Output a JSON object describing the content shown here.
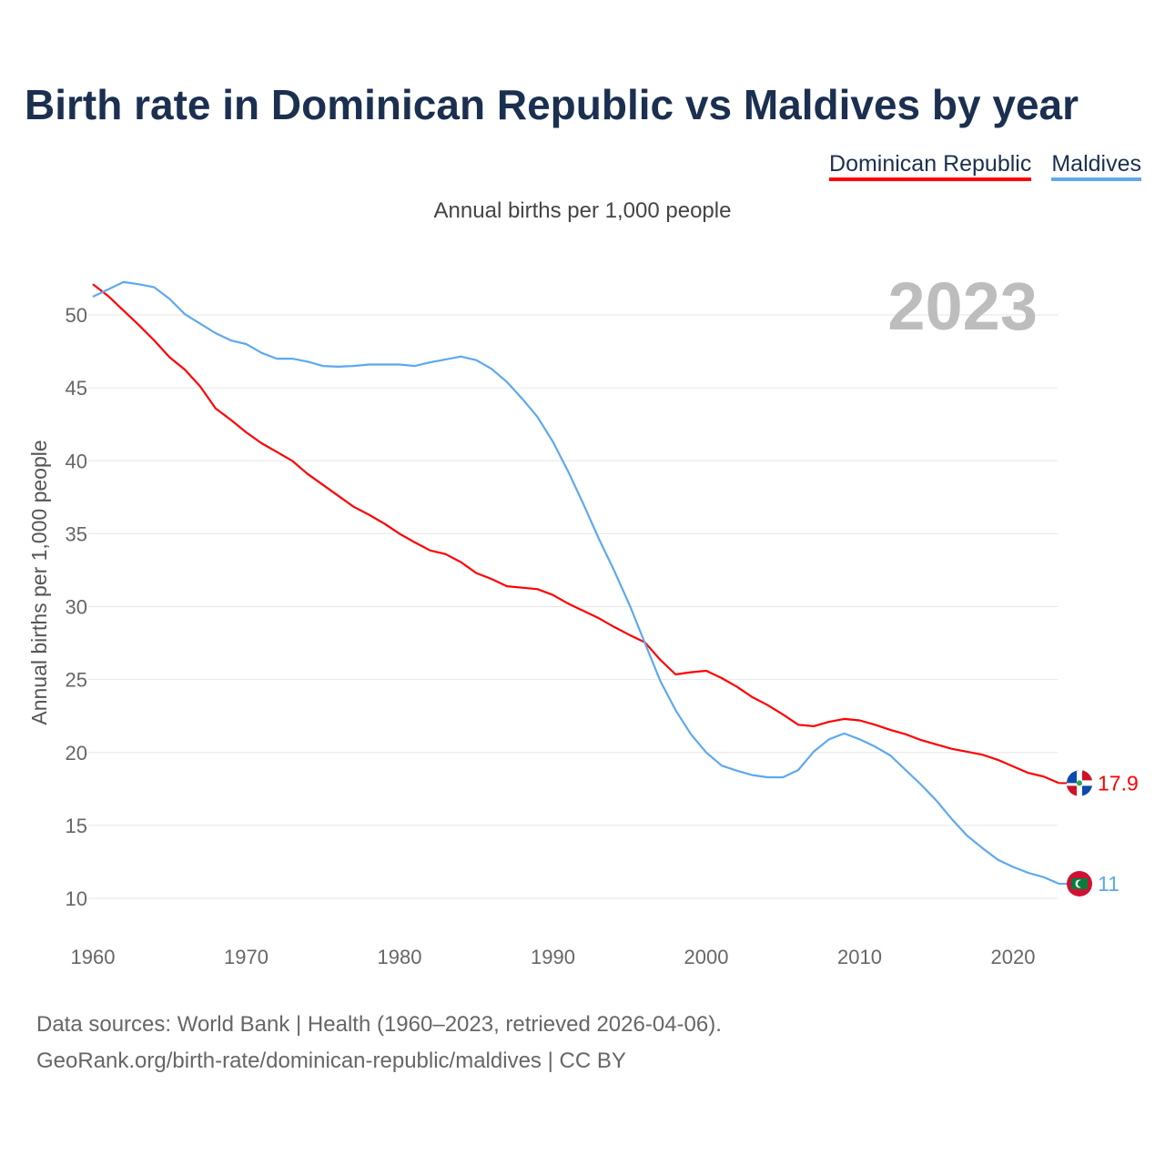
{
  "title": "Birth rate in Dominican Republic vs Maldives by year",
  "subtitle": "Annual births per 1,000 people",
  "year_badge": "2023",
  "footer": {
    "line1": "Data sources: World Bank | Health (1960–2023, retrieved 2026-04-06).",
    "line2": "GeoRank.org/birth-rate/dominican-republic/maldives | CC BY"
  },
  "chart_data": {
    "type": "line",
    "title": "Birth rate in Dominican Republic vs Maldives by year",
    "xlabel": "",
    "ylabel": "Annual births per 1,000 people",
    "xlim": [
      1960,
      2023
    ],
    "ylim": [
      8,
      53
    ],
    "xticks": [
      "1960",
      "1970",
      "1980",
      "1990",
      "2000",
      "2010",
      "2020"
    ],
    "yticks": [
      "10",
      "15",
      "20",
      "25",
      "30",
      "35",
      "40",
      "45",
      "50"
    ],
    "grid": true,
    "legend_position": "top-right",
    "x": [
      1960,
      1961,
      1962,
      1963,
      1964,
      1965,
      1966,
      1967,
      1968,
      1969,
      1970,
      1971,
      1972,
      1973,
      1974,
      1975,
      1976,
      1977,
      1978,
      1979,
      1980,
      1981,
      1982,
      1983,
      1984,
      1985,
      1986,
      1987,
      1988,
      1989,
      1990,
      1991,
      1992,
      1993,
      1994,
      1995,
      1996,
      1997,
      1998,
      1999,
      2000,
      2001,
      2002,
      2003,
      2004,
      2005,
      2006,
      2007,
      2008,
      2009,
      2010,
      2011,
      2012,
      2013,
      2014,
      2015,
      2016,
      2017,
      2018,
      2019,
      2020,
      2021,
      2022,
      2023
    ],
    "series": [
      {
        "name": "Dominican Republic",
        "color": "#ff0000",
        "end_label": "17.9",
        "values": [
          52.1,
          51.3,
          50.3,
          49.3,
          48.25,
          47.1,
          46.25,
          45.1,
          43.6,
          42.8,
          41.95,
          41.2,
          40.6,
          40.0,
          39.1,
          38.35,
          37.6,
          36.85,
          36.3,
          35.7,
          35.0,
          34.4,
          33.85,
          33.6,
          33.05,
          32.3,
          31.9,
          31.4,
          31.3,
          31.2,
          30.8,
          30.2,
          29.7,
          29.2,
          28.6,
          28.05,
          27.55,
          26.35,
          25.35,
          25.5,
          25.6,
          25.1,
          24.5,
          23.8,
          23.25,
          22.6,
          21.9,
          21.8,
          22.1,
          22.3,
          22.2,
          21.9,
          21.55,
          21.25,
          20.85,
          20.55,
          20.25,
          20.05,
          19.85,
          19.5,
          19.05,
          18.6,
          18.35,
          17.9
        ]
      },
      {
        "name": "Maldives",
        "color": "#5ea8ee",
        "end_label": "11",
        "values": [
          51.25,
          51.75,
          52.25,
          52.1,
          51.9,
          51.1,
          50.05,
          49.4,
          48.75,
          48.25,
          48.0,
          47.4,
          47.0,
          47.0,
          46.8,
          46.5,
          46.45,
          46.5,
          46.6,
          46.6,
          46.6,
          46.5,
          46.75,
          46.95,
          47.15,
          46.9,
          46.3,
          45.4,
          44.25,
          43.0,
          41.3,
          39.25,
          37.0,
          34.65,
          32.45,
          30.1,
          27.5,
          24.9,
          22.9,
          21.25,
          20.0,
          19.1,
          18.75,
          18.45,
          18.3,
          18.3,
          18.8,
          20.05,
          20.9,
          21.3,
          20.9,
          20.4,
          19.8,
          18.8,
          17.8,
          16.7,
          15.45,
          14.3,
          13.45,
          12.65,
          12.15,
          11.75,
          11.45,
          11.0
        ]
      }
    ]
  }
}
